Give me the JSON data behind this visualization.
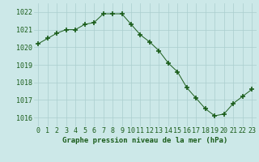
{
  "x": [
    0,
    1,
    2,
    3,
    4,
    5,
    6,
    7,
    8,
    9,
    10,
    11,
    12,
    13,
    14,
    15,
    16,
    17,
    18,
    19,
    20,
    21,
    22,
    23
  ],
  "y": [
    1020.2,
    1020.5,
    1020.8,
    1021.0,
    1021.0,
    1021.3,
    1021.4,
    1021.9,
    1021.9,
    1021.9,
    1021.3,
    1020.7,
    1020.3,
    1019.8,
    1019.1,
    1018.6,
    1017.7,
    1017.1,
    1016.5,
    1016.1,
    1016.2,
    1016.8,
    1017.2,
    1017.6
  ],
  "line_color": "#1a5c1a",
  "marker_color": "#1a5c1a",
  "bg_color": "#cce8e8",
  "grid_color": "#aacece",
  "xlabel": "Graphe pression niveau de la mer (hPa)",
  "xlabel_color": "#1a5c1a",
  "tick_color": "#1a5c1a",
  "ylim": [
    1015.5,
    1022.5
  ],
  "yticks": [
    1016,
    1017,
    1018,
    1019,
    1020,
    1021,
    1022
  ],
  "xticks": [
    0,
    1,
    2,
    3,
    4,
    5,
    6,
    7,
    8,
    9,
    10,
    11,
    12,
    13,
    14,
    15,
    16,
    17,
    18,
    19,
    20,
    21,
    22,
    23
  ],
  "xlabel_fontsize": 6.5,
  "tick_fontsize": 6.0
}
